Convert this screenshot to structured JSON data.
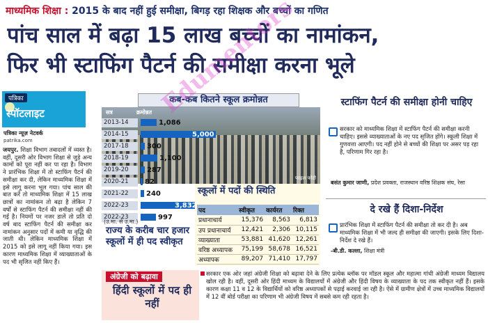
{
  "kicker": {
    "label": "माध्यमिक शिक्षा :",
    "text": "2015 के बाद नहीं हुई समीक्षा, बिगड़ रहा शिक्षक और बच्चों का गणित"
  },
  "headline": {
    "line1": "पांच साल में बढ़ा 15 लाख बच्चों का नामांकन,",
    "line2": "फिर भी स्टाफिंग पैटर्न की समीक्षा करना भूले"
  },
  "spotlight": {
    "brand": "पत्रिका",
    "name": "स्पॉटलाइट",
    "byline": "पत्रिका न्यूज़ नेटवर्क",
    "site": "patrika.com"
  },
  "left_body": {
    "dateline": "जयपुर.",
    "text": "शिक्षा विभाग तबादलों में व्यस्त है। वहीं, दूसरी ओर विभाग शिक्षा से जुड़े अन्य कामों को पूरा नहीं कर पा रहा है। विभाग ने प्रारंभिक शिक्षा में तो स्टाफिंग पैटर्न की समीक्षा कर दी, लेकिन माध्यमिक शिक्षा में इसे लागू करना भूल गया। पांच साल की बात करें तो माध्यमिक शिक्षा में 15 लाख छात्रों का नामांकन तो बढ़ा है लेकिन 7 वर्षों से स्टाफिंग पैटर्न की समीक्षा नहीं की गई है। नियमों पर नजर डालें तो प्रति दो वर्ष बाद स्टाफिंग पैटर्न की समीक्षा कर नामांकन अनुसार पदों में कमी या वृद्धि की जाती थी। लेकिन माध्यमिक शिक्षा में 2015 को इसे लागू नहीं किया गया। इस कारण माध्यमिक शिक्षा में व्याख्याताओं के पद भी सृजित नहीं किए हैं।"
  },
  "upgrade_box": {
    "title": "कब-कब कितने स्कूल क्रमोन्नत",
    "col_year": "सत्र",
    "col_count": "क्रमोन्नत",
    "unit": "(उ.मा. से उ.मा.)",
    "photo_caption": "फाइल फोटो"
  },
  "chart_data": {
    "type": "bar",
    "title": "कब-कब कितने स्कूल क्रमोन्नत",
    "categories": [
      "2013-14",
      "2014-15",
      "2017-18",
      "2018-19",
      "2019-20",
      "2020-21",
      "2021-22",
      "2022-23",
      "2022-23"
    ],
    "values": [
      1086,
      5000,
      300,
      1100,
      287,
      82,
      240,
      3832,
      997
    ],
    "labels": [
      "1,086",
      "5,000",
      "300",
      "1,100",
      "287",
      "82",
      "240",
      "3,832",
      "997"
    ],
    "xlabel": "सत्र",
    "ylabel": "क्रमोन्नत",
    "xlim": [
      0,
      5000
    ],
    "color": "#1565c0"
  },
  "posts_table": {
    "title": "स्कूलों में पदों की स्थिति",
    "headers": [
      "पद",
      "स्वीकृत",
      "कार्यरत",
      "रिक्त"
    ],
    "rows": [
      [
        "प्रधानाचार्य",
        "15,376",
        "8,563",
        "6,813"
      ],
      [
        "उप प्रधानाचार्य",
        "12,421",
        "2,306",
        "10,115"
      ],
      [
        "व्याख्याता",
        "53,881",
        "41,620",
        "12,261"
      ],
      [
        "वरिष्ठ अध्यापक",
        "75,199",
        "58,678",
        "16,521"
      ],
      [
        "अध्यापक",
        "89,207",
        "71,410",
        "17,797"
      ]
    ]
  },
  "staff_note": "राज्य के करीब चार हजार स्कूलों में ही पद स्वीकृत",
  "right": {
    "head1": "स्टाफिंग पैटर्न की समीक्षा होनी चाहिए",
    "quote1": "सरकार को माध्यमिक शिक्षा में स्टाफिंग पैटर्न की समीक्षा करनी चाहिए। इससे व्याख्याताओं के नए पद सृजित होंगे। स्कूली शिक्षा में गुणवत्ता आएगी। पद नहीं होने से बच्चों की शिक्षा पर असर पड़ रहा है, परिणाम गिर रहा है।",
    "sig1_name": "बसंत कुमार जाणी,",
    "sig1_role": "प्रदेश प्रवक्ता, राजस्थान वरिष्ठ शिक्षक संघ, रेसा",
    "head2": "दे रखे हैं दिशा-निर्देश",
    "quote2": "प्रारंभिक शिक्षा में स्टाफिंग पैटर्न की समीक्षा तो कर दी है। अब माध्यमिक शिक्षा में भी जल्द ही समीक्षा की जाएगी। इसके लिए दिशा-निर्देश दे रखे हैं।",
    "sig2_name": "-बी.डी. कल्ला,",
    "sig2_role": "शिक्षा मंत्री"
  },
  "english_box": {
    "tag": "अंग्रेजी को बढ़ावा",
    "big": "हिंदी स्कूलों में पद ही नहीं",
    "body": "सरकार एक ओर जहां अंग्रेजी शिक्षा को बढ़ावा देने के लिए प्रत्येक ब्लॉक पर मॉडल स्कूल और महात्मा गांधी अंग्रेजी माध्यम विद्यालय खोल रही है। वहीं, दूसरी ओर हिंदी माध्यम के विद्यालयों में अंग्रेजी और हिंदी विषय के व्याख्याता के पद तक स्वीकृत नहीं हैं। इसके कारण कक्षा 11 व 12 के विद्यार्थियों को वरिष्ठ अध्यापकों से पढ़ाई करवाई जा रही है। ऐसे में ग्रामीण क्षेत्रों में उच्च माध्यमिक विद्यालयों में 12 वीं बोर्ड परीक्षा का परिणाम भी अंग्रेजी विषय में सबसे कम रही रहता है।"
  },
  "watermark": "Edumentors"
}
